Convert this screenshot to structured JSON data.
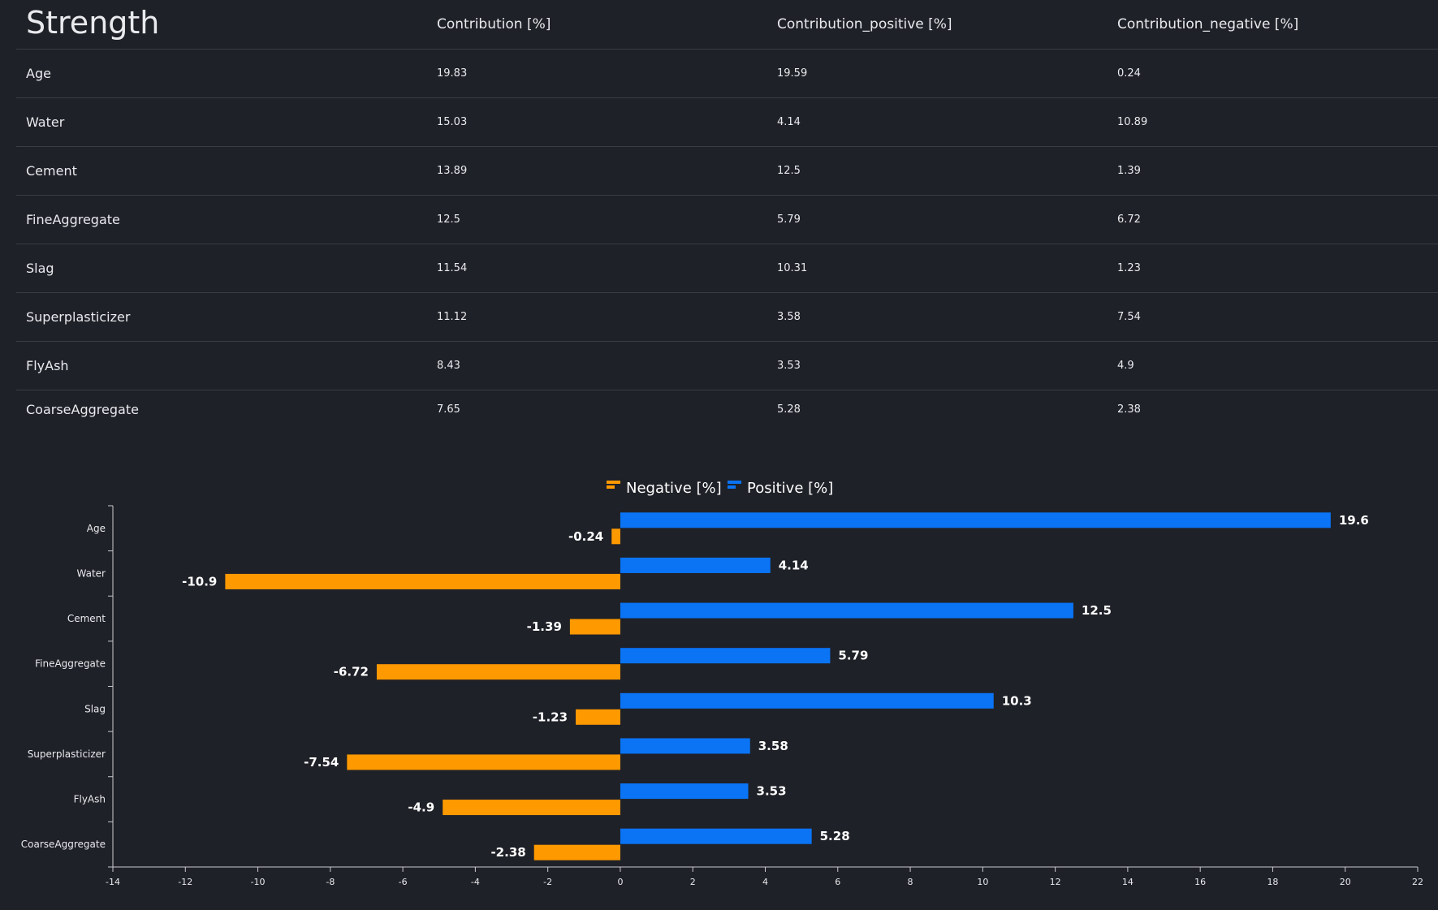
{
  "table": {
    "title": "Strength",
    "headers": [
      "Contribution [%]",
      "Contribution_positive [%]",
      "Contribution_negative [%]"
    ],
    "rows": [
      [
        "Age",
        "19.83",
        "19.59",
        "0.24"
      ],
      [
        "Water",
        "15.03",
        "4.14",
        "10.89"
      ],
      [
        "Cement",
        "13.89",
        "12.5",
        "1.39"
      ],
      [
        "FineAggregate",
        "12.5",
        "5.79",
        "6.72"
      ],
      [
        "Slag",
        "11.54",
        "10.31",
        "1.23"
      ],
      [
        "Superplasticizer",
        "11.12",
        "3.58",
        "7.54"
      ],
      [
        "FlyAsh",
        "8.43",
        "3.53",
        "4.9"
      ],
      [
        "CoarseAggregate",
        "7.65",
        "5.28",
        "2.38"
      ]
    ]
  },
  "chart_data": {
    "type": "bar",
    "orientation": "horizontal",
    "categories": [
      "Age",
      "Water",
      "Cement",
      "FineAggregate",
      "Slag",
      "Superplasticizer",
      "FlyAsh",
      "CoarseAggregate"
    ],
    "series": [
      {
        "name": "Negative [%]",
        "color": "#ff9900",
        "values": [
          -0.24,
          -10.9,
          -1.39,
          -6.72,
          -1.23,
          -7.54,
          -4.9,
          -2.38
        ],
        "labels": [
          "-0.24",
          "-10.9",
          "-1.39",
          "-6.72",
          "-1.23",
          "-7.54",
          "-4.9",
          "-2.38"
        ]
      },
      {
        "name": "Positive [%]",
        "color": "#0a74f5",
        "values": [
          19.6,
          4.14,
          12.5,
          5.79,
          10.3,
          3.58,
          3.53,
          5.28
        ],
        "labels": [
          "19.6",
          "4.14",
          "12.5",
          "5.79",
          "10.3",
          "3.58",
          "3.53",
          "5.28"
        ]
      }
    ],
    "xlim": [
      -14,
      22
    ],
    "xticks": [
      -14,
      -12,
      -10,
      -8,
      -6,
      -4,
      -2,
      0,
      2,
      4,
      6,
      8,
      10,
      12,
      14,
      16,
      18,
      20,
      22
    ],
    "legend_position": "top-center",
    "grid": false
  }
}
